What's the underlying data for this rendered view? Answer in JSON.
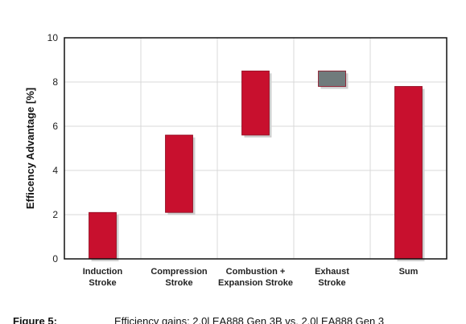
{
  "chart_data": {
    "type": "bar",
    "subtype": "floating-waterfall",
    "ylabel": "Efficency Advantage [%]",
    "xlabel": "",
    "ylim": [
      0,
      10
    ],
    "yticks": [
      0,
      2,
      4,
      6,
      8,
      10
    ],
    "grid": true,
    "categories": [
      [
        "Induction",
        "Stroke"
      ],
      [
        "Compression",
        "Stroke"
      ],
      [
        "Combustion +",
        "Expansion Stroke"
      ],
      [
        "Exhaust",
        "Stroke"
      ],
      [
        "Sum"
      ]
    ],
    "bars": [
      {
        "low": 0.0,
        "high": 2.1,
        "color": "#c8102e"
      },
      {
        "low": 2.1,
        "high": 5.6,
        "color": "#c8102e"
      },
      {
        "low": 5.6,
        "high": 8.5,
        "color": "#c8102e"
      },
      {
        "low": 7.8,
        "high": 8.5,
        "color": "#707b7c"
      },
      {
        "low": 0.0,
        "high": 7.8,
        "color": "#c8102e"
      }
    ]
  },
  "caption": {
    "label": "Figure 5:",
    "text": "Efficiency gains: 2.0l EA888 Gen 3B vs. 2.0l EA888 Gen 3"
  }
}
